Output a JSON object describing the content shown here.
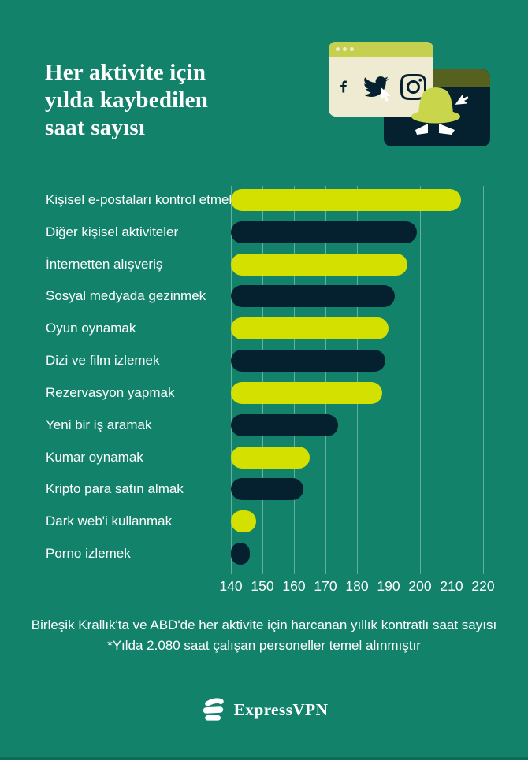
{
  "header": {
    "title_lines": [
      "Her aktivite için",
      "yılda kaybedilen",
      "saat sayısı"
    ]
  },
  "chart_data": {
    "type": "bar",
    "orientation": "horizontal",
    "title": "Her aktivite için yılda kaybedilen saat sayısı",
    "categories": [
      "Kişisel e-postaları kontrol etmek",
      "Diğer kişisel aktiviteler",
      "İnternetten alışveriş",
      "Sosyal medyada gezinmek",
      "Oyun oynamak",
      "Dizi ve film izlemek",
      "Rezervasyon yapmak",
      "Yeni bir iş aramak",
      "Kumar oynamak",
      "Kripto para satın almak",
      "Dark web'i kullanmak",
      "Porno izlemek"
    ],
    "values": [
      213,
      199,
      196,
      192,
      190,
      189,
      188,
      174,
      165,
      163,
      148,
      146
    ],
    "unit": "saat",
    "xlim": [
      140,
      220
    ],
    "x_ticks": [
      "140",
      "150",
      "160",
      "170",
      "180",
      "190",
      "200",
      "210",
      "220"
    ],
    "grid": true,
    "legend": "none",
    "bar_color_pattern": [
      "#D3E000",
      "#052130"
    ]
  },
  "footnote": {
    "line1": "Birleşik Krallık'ta ve ABD'de her aktivite için harcanan yıllık kontratlı saat sayısı",
    "line2": "*Yılda 2.080 saat çalışan personeller temel alınmıştır"
  },
  "footer": {
    "brand": "ExpressVPN"
  },
  "illustration": {
    "icons": [
      "facebook-icon",
      "twitter-icon",
      "instagram-icon",
      "cursor-icon",
      "spy-incognito-icon"
    ]
  },
  "colors": {
    "background": "#12826B",
    "bar_lime": "#D3E000",
    "bar_navy": "#052130",
    "text": "#FFFFFF",
    "cream_window": "#EFEBD2",
    "window_titlebar": "#C5D04E",
    "spy_card": "#052130",
    "olive_band": "#566120",
    "gridline": "rgba(219,238,231,0.42)"
  }
}
